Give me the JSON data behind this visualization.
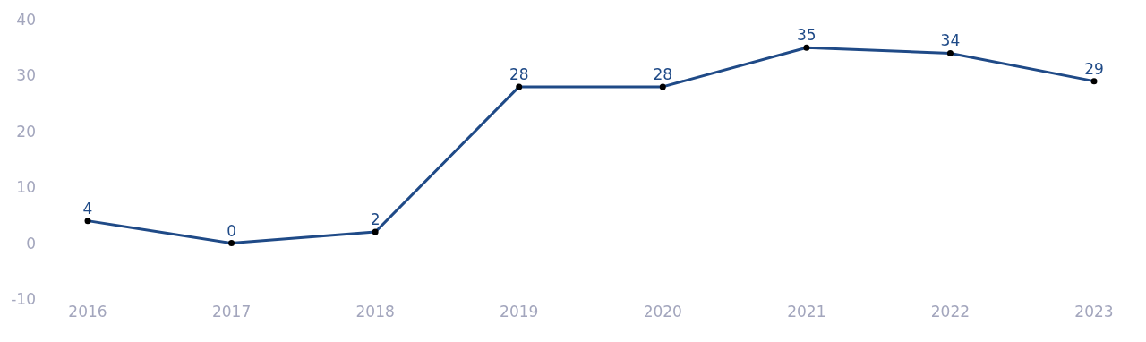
{
  "chart_data": {
    "type": "line",
    "categories": [
      "2016",
      "2017",
      "2018",
      "2019",
      "2020",
      "2021",
      "2022",
      "2023"
    ],
    "values": [
      4,
      0,
      2,
      28,
      28,
      35,
      34,
      29
    ],
    "color": "#1f4a87",
    "ylim": [
      -10,
      40
    ],
    "yticks": [
      -10,
      0,
      10,
      20,
      30,
      40
    ],
    "grid": false,
    "marker": "circle",
    "data_labels": true
  }
}
